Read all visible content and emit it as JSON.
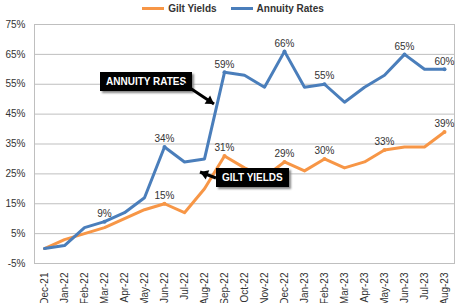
{
  "chart_data": {
    "type": "line",
    "categories": [
      "Dec-21",
      "Jan-22",
      "Feb-22",
      "Mar-22",
      "Apr-22",
      "May-22",
      "Jun-22",
      "Jul-22",
      "Aug-22",
      "Sep-22",
      "Oct-22",
      "Nov-22",
      "Dec-22",
      "Jan-23",
      "Feb-23",
      "Mar-23",
      "Apr-23",
      "May-23",
      "Jun-23",
      "Jul-23",
      "Aug-23"
    ],
    "series": [
      {
        "name": "Gilt Yields",
        "color": "#f79646",
        "values": [
          0,
          3,
          5,
          7,
          10,
          13,
          15,
          12,
          20,
          31,
          27,
          24,
          29,
          26,
          30,
          27,
          29,
          33,
          34,
          34,
          39
        ],
        "value_labels": [
          null,
          null,
          null,
          null,
          null,
          null,
          "15%",
          null,
          null,
          "31%",
          null,
          null,
          "29%",
          null,
          "30%",
          null,
          null,
          "33%",
          null,
          null,
          "39%"
        ]
      },
      {
        "name": "Annuity Rates",
        "color": "#4a7ebb",
        "values": [
          0,
          1,
          7,
          9,
          12,
          17,
          34,
          29,
          30,
          59,
          58,
          54,
          66,
          54,
          55,
          49,
          54,
          58,
          65,
          60,
          60
        ],
        "value_labels": [
          null,
          null,
          null,
          "9%",
          null,
          null,
          "34%",
          null,
          null,
          "59%",
          null,
          null,
          "66%",
          null,
          "55%",
          null,
          null,
          null,
          "65%",
          null,
          "60%"
        ]
      }
    ],
    "ylim": [
      -5,
      75
    ],
    "yticks": [
      {
        "value": -5,
        "label": "-5%"
      },
      {
        "value": 5,
        "label": "5%"
      },
      {
        "value": 15,
        "label": "15%"
      },
      {
        "value": 25,
        "label": "25%"
      },
      {
        "value": 35,
        "label": "35%"
      },
      {
        "value": 45,
        "label": "45%"
      },
      {
        "value": 55,
        "label": "55%"
      },
      {
        "value": 65,
        "label": "65%"
      },
      {
        "value": 75,
        "label": "75%"
      }
    ],
    "grid": true,
    "legend": "top",
    "data_labels": true,
    "annotations": [
      {
        "text": "ANNUITY RATES",
        "series": "Annuity Rates"
      },
      {
        "text": "GILT YIELDS",
        "series": "Gilt Yields"
      }
    ]
  }
}
